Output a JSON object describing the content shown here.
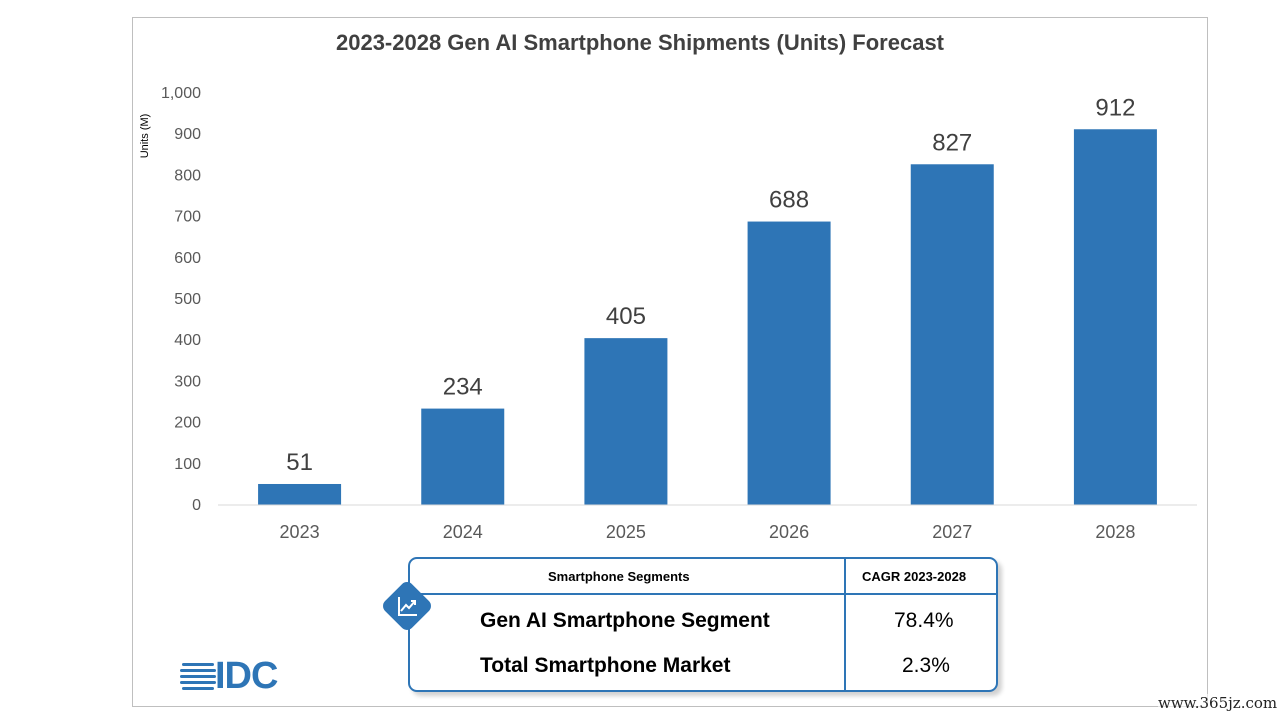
{
  "chart_data": {
    "type": "bar",
    "title": "2023-2028 Gen AI Smartphone Shipments (Units) Forecast",
    "xlabel": "",
    "ylabel": "Units (M)",
    "categories": [
      "2023",
      "2024",
      "2025",
      "2026",
      "2027",
      "2028"
    ],
    "values": [
      51,
      234,
      405,
      688,
      827,
      912
    ],
    "ylim": [
      0,
      1000
    ],
    "yticks": [
      "0",
      "100",
      "200",
      "300",
      "400",
      "500",
      "600",
      "700",
      "800",
      "900",
      "1,000"
    ],
    "bar_color": "#2e75b6",
    "grid": false,
    "legend": "none"
  },
  "segments_table": {
    "header_segment": "Smartphone Segments",
    "header_cagr": "CAGR 2023-2028",
    "rows": [
      {
        "segment": "Gen AI Smartphone Segment",
        "cagr": "78.4%"
      },
      {
        "segment": "Total Smartphone Market",
        "cagr": "2.3%"
      }
    ],
    "icon": "trend-up-chart-icon"
  },
  "logo": {
    "text": "IDC",
    "color": "#2e75b6"
  },
  "watermark": "www.365jz.com"
}
